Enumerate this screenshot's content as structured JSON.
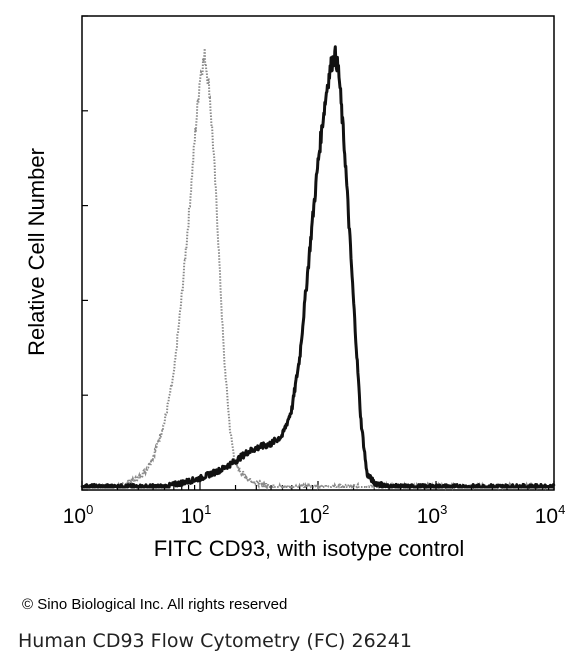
{
  "chart_data": {
    "type": "line",
    "xlabel": "FITC CD93, with isotype control",
    "ylabel": "Relative Cell Number",
    "x_scale": "log",
    "xlim": [
      1,
      10000
    ],
    "ylim": [
      0,
      1
    ],
    "grid": false,
    "x_ticks": [
      {
        "base": "10",
        "exp": "0"
      },
      {
        "base": "10",
        "exp": "1"
      },
      {
        "base": "10",
        "exp": "2"
      },
      {
        "base": "10",
        "exp": "3"
      },
      {
        "base": "10",
        "exp": "4"
      }
    ],
    "x_tick_values": [
      1,
      10,
      100,
      1000,
      10000
    ],
    "series": [
      {
        "style": "dotted-gray",
        "color": "#8a8a8a",
        "x": [
          1,
          2,
          3,
          3.5,
          4,
          4.5,
          5,
          6,
          7,
          8,
          9,
          10,
          11,
          12,
          13,
          14,
          15,
          16,
          18,
          20,
          25,
          30,
          40,
          60,
          100,
          1000,
          10000
        ],
        "y": [
          0.0,
          0.0,
          0.02,
          0.04,
          0.07,
          0.11,
          0.15,
          0.26,
          0.44,
          0.62,
          0.8,
          0.95,
          1.0,
          0.92,
          0.78,
          0.62,
          0.45,
          0.3,
          0.13,
          0.05,
          0.02,
          0.01,
          0.0,
          0.0,
          0.0,
          0.0,
          0.0
        ]
      },
      {
        "style": "solid-black",
        "color": "#111111",
        "x": [
          1,
          5,
          10,
          15,
          20,
          25,
          30,
          40,
          50,
          60,
          70,
          80,
          90,
          100,
          110,
          120,
          130,
          140,
          150,
          170,
          200,
          230,
          260,
          300,
          400,
          1000,
          10000
        ],
        "y": [
          0.0,
          0.0,
          0.02,
          0.04,
          0.06,
          0.08,
          0.09,
          0.1,
          0.12,
          0.18,
          0.3,
          0.47,
          0.62,
          0.75,
          0.85,
          0.93,
          0.98,
          1.0,
          0.96,
          0.76,
          0.43,
          0.16,
          0.03,
          0.01,
          0.0,
          0.0,
          0.0
        ]
      }
    ]
  },
  "footer": {
    "copyright": "© Sino Biological Inc. All rights reserved",
    "caption": "Human CD93 Flow Cytometry (FC) 26241"
  }
}
